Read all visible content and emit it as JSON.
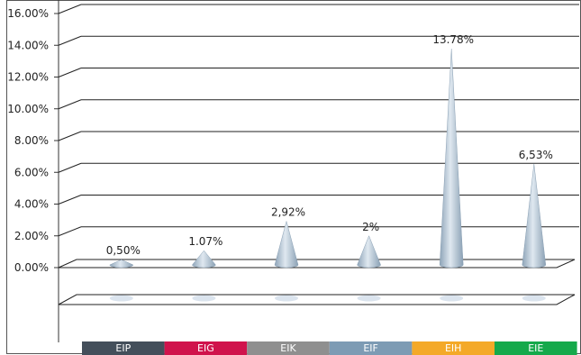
{
  "chart_data": {
    "type": "bar",
    "categories": [
      "EIP",
      "EIG",
      "EIK",
      "EIF",
      "EIH",
      "EIE"
    ],
    "values": [
      0.5,
      1.07,
      2.92,
      2.0,
      13.78,
      6.53
    ],
    "data_labels": [
      "0,50%",
      "1.07%",
      "2,92%",
      "2%",
      "13.78%",
      "6,53%"
    ],
    "category_colors": [
      "#444f5b",
      "#d0134c",
      "#8f8f8f",
      "#7d9bb4",
      "#f4a928",
      "#15a94b"
    ],
    "mark_style": "cone",
    "ylim": [
      0,
      16
    ],
    "yticks": [
      0,
      2,
      4,
      6,
      8,
      10,
      12,
      14,
      16
    ],
    "ytick_labels": [
      "0.00%",
      "2.00%",
      "4.00%",
      "6.00%",
      "8.00%",
      "10.00%",
      "12.00%",
      "14.00%",
      "16.00%"
    ],
    "grid": true,
    "title": "",
    "xlabel": "",
    "ylabel": ""
  }
}
